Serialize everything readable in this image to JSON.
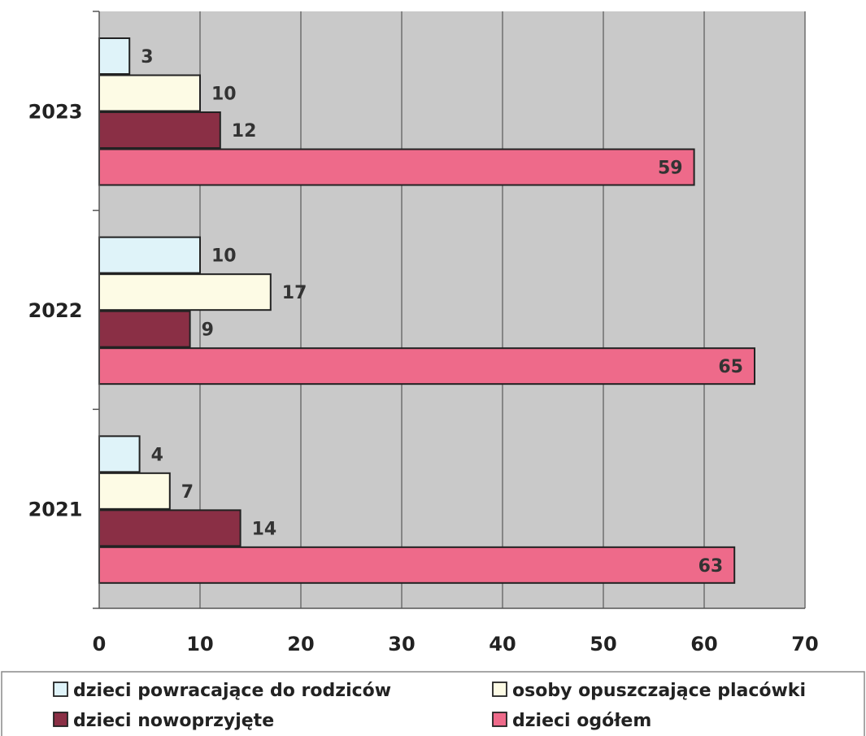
{
  "chart_data": {
    "type": "bar",
    "orientation": "horizontal",
    "categories": [
      "2021",
      "2022",
      "2023"
    ],
    "series": [
      {
        "name": "dzieci powracające do rodziców",
        "values": [
          4,
          10,
          3
        ],
        "color": "#dff3f9"
      },
      {
        "name": "osoby opuszczające placówki",
        "values": [
          7,
          17,
          10
        ],
        "color": "#fdfbe5"
      },
      {
        "name": "dzieci nowoprzyjęte",
        "values": [
          14,
          9,
          12
        ],
        "color": "#8a2f45"
      },
      {
        "name": "dzieci ogółem",
        "values": [
          63,
          65,
          59
        ],
        "color": "#ee6a8a"
      }
    ],
    "xlim": [
      0,
      70
    ],
    "xticks": [
      0,
      10,
      20,
      30,
      40,
      50,
      60,
      70
    ],
    "grid": true,
    "plot_background": "#c9c9c9",
    "legend_position": "bottom",
    "title": "",
    "xlabel": "",
    "ylabel": ""
  }
}
